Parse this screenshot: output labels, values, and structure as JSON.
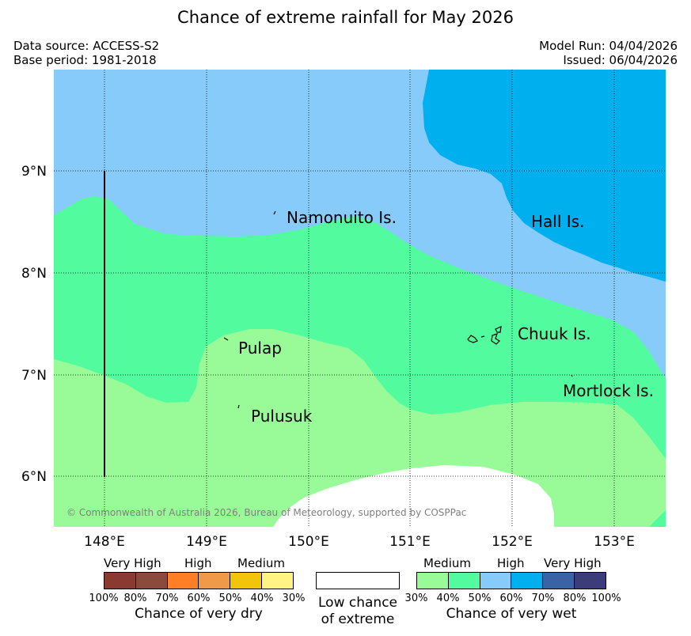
{
  "title": "Chance of extreme rainfall for May 2026",
  "meta": {
    "data_source": "Data source: ACCESS-S2",
    "base_period": "Base period: 1981-2018",
    "model_run": "Model Run: 04/04/2026",
    "issued": "Issued: 06/04/2026"
  },
  "places": {
    "namonuito": "Namonuito Is.",
    "hall": "Hall Is.",
    "chuuk": "Chuuk Is.",
    "pulap": "Pulap",
    "pulusuk": "Pulusuk",
    "mortlock": "Mortlock Is."
  },
  "axes": {
    "lat_labels": [
      "9°N",
      "8°N",
      "7°N",
      "6°N"
    ],
    "lon_labels": [
      "148°E",
      "149°E",
      "150°E",
      "151°E",
      "152°E",
      "153°E"
    ]
  },
  "copyright": "© Commonwealth of Australia 2026, Bureau of Meteorology, supported by COSPPac",
  "legend": {
    "dry": {
      "categories": [
        "Very High",
        "High",
        "Medium"
      ],
      "ticks": [
        "100%",
        "80%",
        "70%",
        "60%",
        "50%",
        "40%",
        "30%"
      ],
      "colors": [
        "#8b3a32",
        "#8a4b3c",
        "#ff7f27",
        "#ef9a48",
        "#f2c40a",
        "#fff383"
      ],
      "title": "Chance of very dry"
    },
    "low": {
      "line1": "Low chance",
      "line2": "of extreme"
    },
    "wet": {
      "categories": [
        "Medium",
        "High",
        "Very High"
      ],
      "ticks": [
        "30%",
        "40%",
        "50%",
        "60%",
        "70%",
        "80%",
        "100%"
      ],
      "colors": [
        "#98fb98",
        "#52fc9e",
        "#87cbfb",
        "#00b0ee",
        "#3a63a6",
        "#3d3c7a"
      ],
      "title": "Chance of very wet"
    }
  }
}
